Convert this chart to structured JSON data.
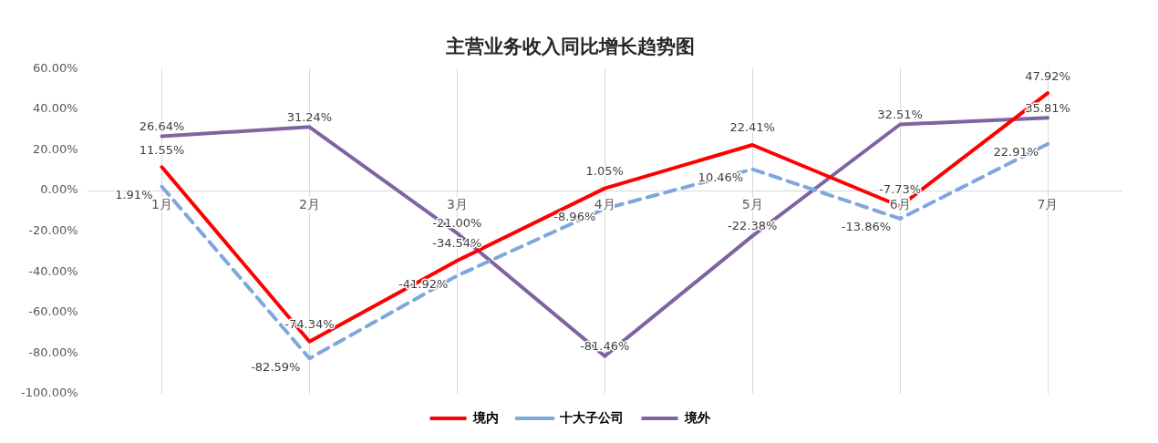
{
  "chart_data": {
    "type": "line",
    "title": "主营业务收入同比增长趋势图",
    "categories": [
      "1月",
      "2月",
      "3月",
      "4月",
      "5月",
      "6月",
      "7月"
    ],
    "series": [
      {
        "name": "境内",
        "color": "#ff0000",
        "line_style": "solid",
        "values": [
          11.55,
          -74.34,
          -34.54,
          1.05,
          22.41,
          -7.73,
          47.92
        ],
        "value_labels": [
          "11.55%",
          "-74.34%",
          "-34.54%",
          "1.05%",
          "22.41%",
          "-7.73%",
          "47.92%"
        ]
      },
      {
        "name": "十大子公司",
        "color": "#7fa7dc",
        "line_style": "dashed",
        "values": [
          1.91,
          -82.59,
          -41.92,
          -8.96,
          10.46,
          -13.86,
          22.91
        ],
        "value_labels": [
          "1.91%",
          "-82.59%",
          "-41.92%",
          "-8.96%",
          "10.46%",
          "-13.86%",
          "22.91%"
        ]
      },
      {
        "name": "境外",
        "color": "#8064a2",
        "line_style": "solid",
        "values": [
          26.64,
          31.24,
          -21.0,
          -81.46,
          -22.38,
          32.51,
          35.81
        ],
        "value_labels": [
          "26.64%",
          "31.24%",
          "-21.00%",
          "-81.46%",
          "-22.38%",
          "32.51%",
          "35.81%"
        ]
      }
    ],
    "ylim": [
      -100,
      60
    ],
    "yticks": [
      {
        "value": -100,
        "label": "-100.00%"
      },
      {
        "value": -80,
        "label": "-80.00%"
      },
      {
        "value": -60,
        "label": "-60.00%"
      },
      {
        "value": -40,
        "label": "-40.00%"
      },
      {
        "value": -20,
        "label": "-20.00%"
      },
      {
        "value": 0,
        "label": "0.00%"
      },
      {
        "value": 20,
        "label": "20.00%"
      },
      {
        "value": 40,
        "label": "40.00%"
      },
      {
        "value": 60,
        "label": "60.00%"
      }
    ],
    "grid": "x",
    "legend": "bottom",
    "marker": "none"
  }
}
